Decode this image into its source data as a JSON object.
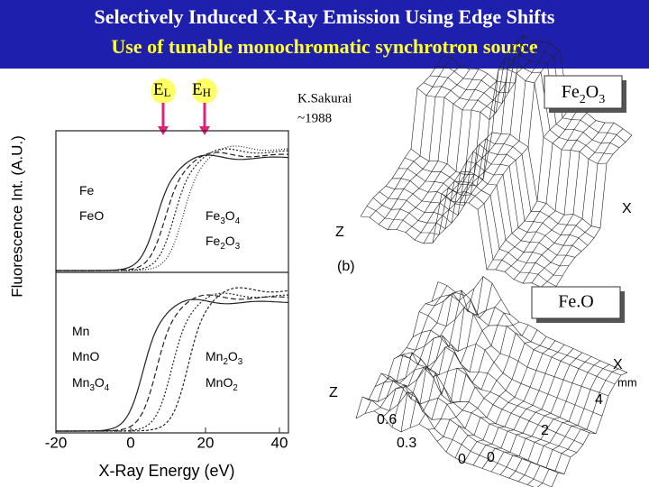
{
  "header": {
    "title": "Selectively Induced X-Ray Emission Using Edge Shifts",
    "subtitle": "Use of tunable monochromatic synchrotron source"
  },
  "energy_markers": [
    {
      "symbol": "E",
      "sub": "L"
    },
    {
      "symbol": "E",
      "sub": "H"
    }
  ],
  "spectra": {
    "y_label": "Fluorescence Int. (A.U.)",
    "x_label": "X-Ray Energy (eV)",
    "x_ticks": [
      "-20",
      "0",
      "20",
      "40"
    ],
    "iron_labels": [
      "Fe",
      "FeO",
      "Fe3O4",
      "Fe2O3"
    ],
    "manganese_labels": [
      "Mn",
      "MnO",
      "Mn3O4",
      "Mn2O3",
      "MnO2"
    ]
  },
  "credit": {
    "author": "K.Sakurai",
    "year": "~1988"
  },
  "maps": [
    {
      "title": "Fe2O3",
      "labels": [
        "Z",
        "X",
        "(b)"
      ]
    },
    {
      "title": "Fe.O",
      "labels": [
        "Z",
        "X",
        "mm",
        "0.6",
        "0.3",
        "0",
        "0",
        "2",
        "4"
      ]
    }
  ]
}
